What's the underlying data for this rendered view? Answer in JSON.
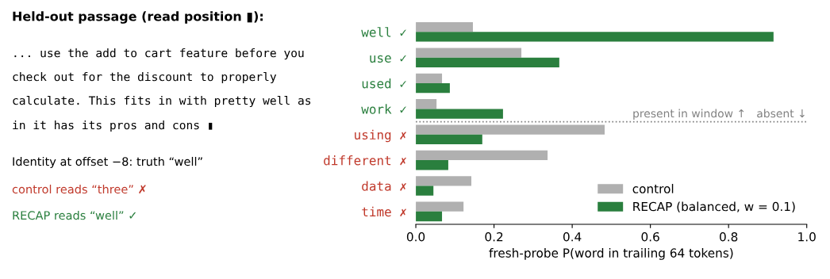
{
  "chart_data": {
    "type": "bar",
    "orientation": "horizontal",
    "title": "Held-out passage (read position ▮):",
    "categories": [
      "well ✓",
      "use ✓",
      "used ✓",
      "work ✓",
      "using ✗",
      "different ✗",
      "data ✗",
      "time ✗"
    ],
    "series": [
      {
        "name": "control",
        "color": "#b0b0b0",
        "values": [
          0.146,
          0.27,
          0.067,
          0.053,
          0.483,
          0.337,
          0.142,
          0.122
        ]
      },
      {
        "name": "RECAP (balanced, w = 0.1)",
        "color": "#2a7f3e",
        "values": [
          0.915,
          0.367,
          0.087,
          0.223,
          0.17,
          0.083,
          0.045,
          0.067
        ]
      }
    ],
    "xlabel": "fresh-probe P(word in trailing 64 tokens)",
    "xlim": [
      0,
      1
    ],
    "xticks": [
      {
        "value": 0,
        "label": "0.0"
      },
      0.2,
      0.4,
      0.6,
      0.8,
      {
        "value": 1,
        "label": "1.0"
      }
    ],
    "legend": "bottom right",
    "annotations": [
      "... use the add to cart feature before you",
      "check out for the discount to properly",
      "calculate. This fits in with pretty well as",
      "in it has its pros and cons ▮",
      "Identity at offset −8: truth “well”",
      "control reads “three” ✗",
      "RECAP reads “well” ✓",
      "present in window ↑   absent ↓"
    ]
  }
}
